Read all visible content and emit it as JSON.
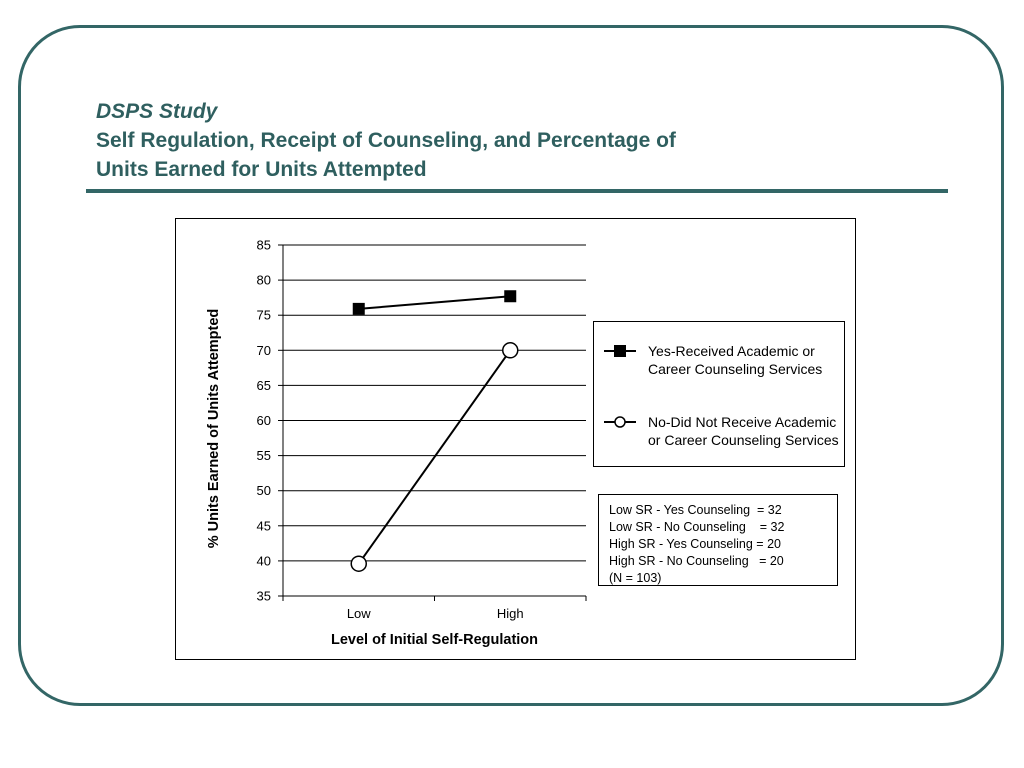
{
  "slide": {
    "title_line1": "DSPS Study",
    "title_line2": "Self Regulation, Receipt of  Counseling, and Percentage of",
    "title_line3": "Units Earned for Units Attempted",
    "accent_color": "#336666",
    "title_color": "#2f5f5f"
  },
  "chart_data": {
    "type": "line",
    "title": "",
    "xlabel": "Level of Initial Self-Regulation",
    "ylabel": "% Units Earned of Units Attempted",
    "categories": [
      "Low",
      "High"
    ],
    "ylim": [
      35,
      85
    ],
    "yticks": [
      35,
      40,
      45,
      50,
      55,
      60,
      65,
      70,
      75,
      80,
      85
    ],
    "grid": true,
    "series": [
      {
        "name": "Yes-Received Academic or Career Counseling Services",
        "name_line1": "Yes-Received Academic or",
        "name_line2": "Career Counseling Services",
        "marker": "filled-square",
        "color": "#000000",
        "values": [
          75.9,
          77.7
        ]
      },
      {
        "name": "No-Did Not Receive Academic or Career Counseling Services",
        "name_line1": "No-Did Not Receive Academic",
        "name_line2": "or Career Counseling Services",
        "marker": "open-circle",
        "color": "#000000",
        "values": [
          39.6,
          70.0
        ]
      }
    ],
    "legend_position": "right",
    "annotation_lines": [
      "Low SR - Yes Counseling  = 32",
      "Low SR - No Counseling    = 32",
      "High SR - Yes Counseling = 20",
      "High SR - No Counseling   = 20",
      "(N = 103)"
    ]
  }
}
